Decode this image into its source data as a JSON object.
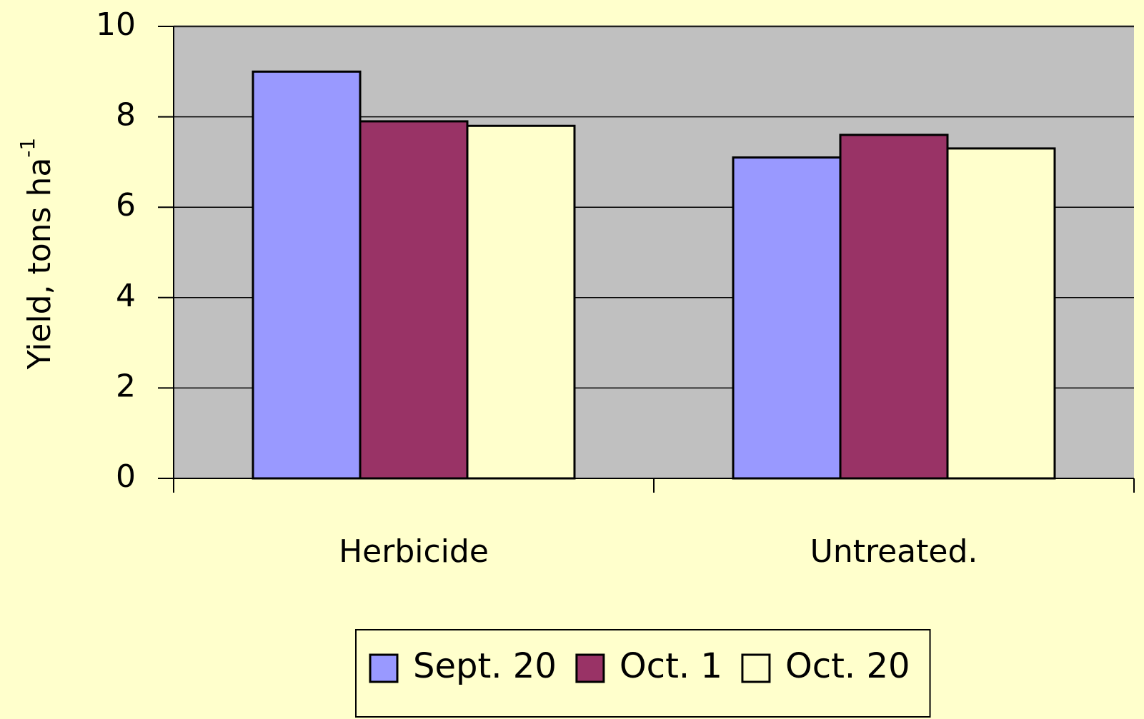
{
  "chart_data": {
    "type": "bar",
    "ylabel": "Yield, tons ha",
    "ylabel_sup": "-1",
    "categories": [
      "Herbicide",
      "Untreated."
    ],
    "series": [
      {
        "name": "Sept. 20",
        "color": "#9999ff",
        "values": [
          9.0,
          7.1
        ]
      },
      {
        "name": "Oct. 1",
        "color": "#993366",
        "values": [
          7.9,
          7.6
        ]
      },
      {
        "name": "Oct. 20",
        "color": "#ffffcc",
        "values": [
          7.8,
          7.3
        ]
      }
    ],
    "ylim": [
      0,
      10
    ],
    "yticks": [
      0,
      2,
      4,
      6,
      8,
      10
    ],
    "grid": true,
    "plot_background": "#c0c0c0",
    "legend": "bottom"
  }
}
